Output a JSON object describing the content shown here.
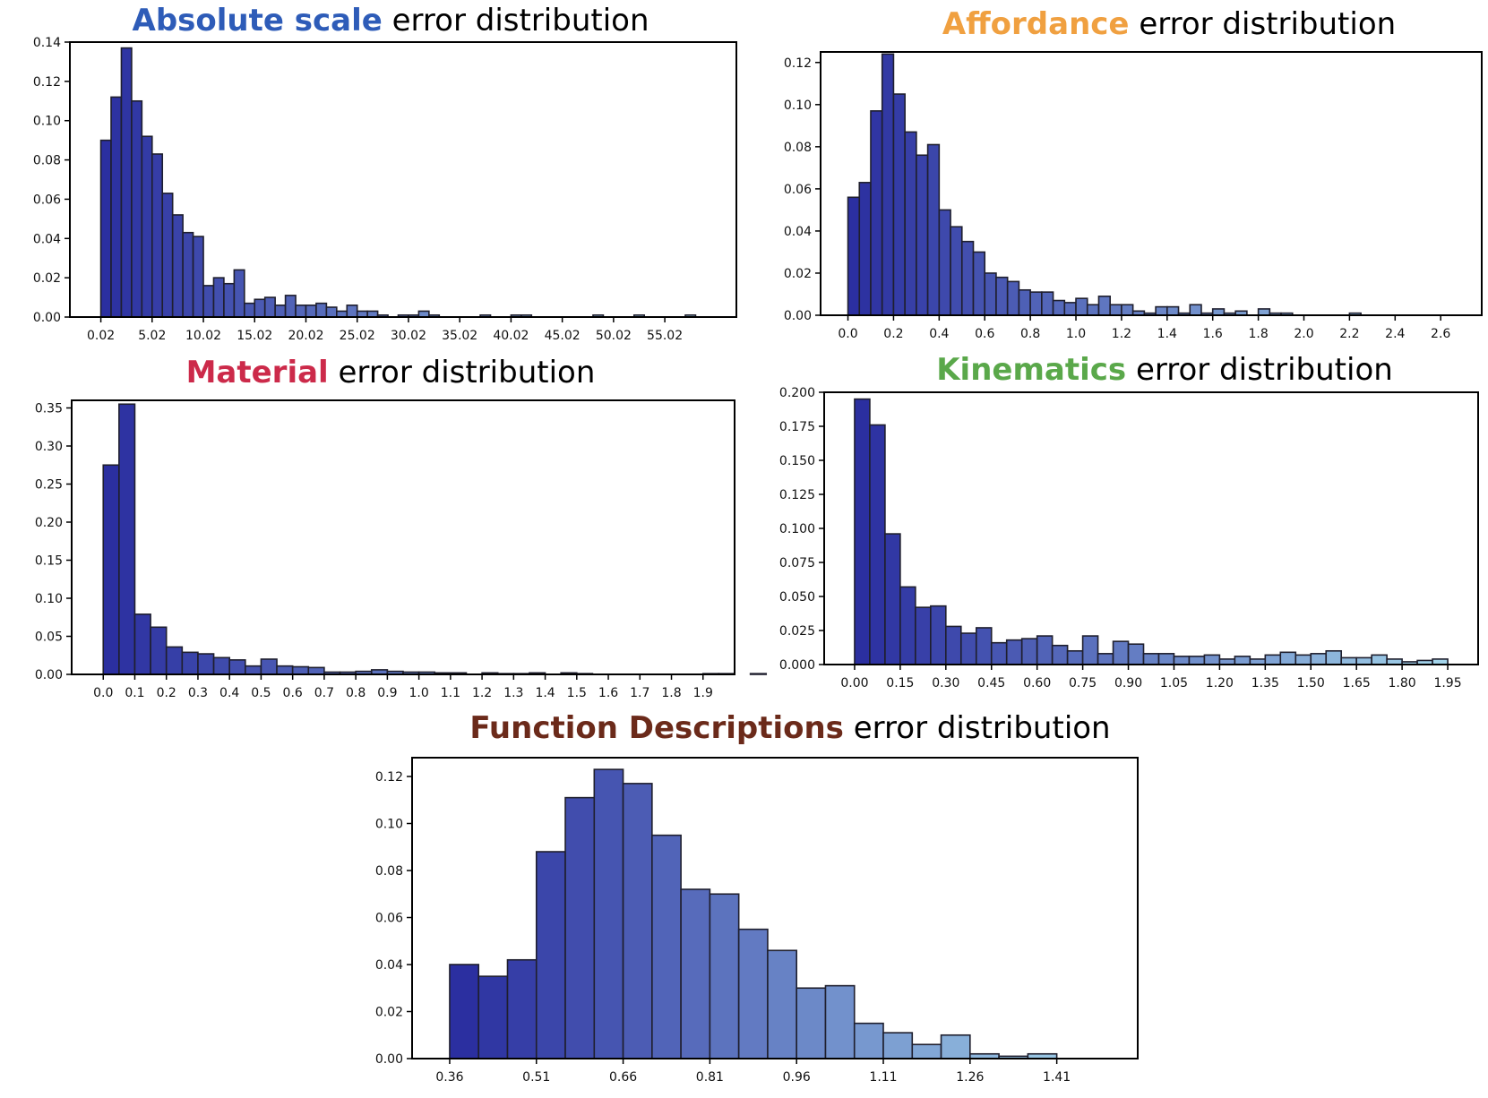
{
  "figure": {
    "colors": {
      "bar_dark": "#2b2fa0",
      "bar_light": "#a3d4ea",
      "edge": "#1f1f2e"
    }
  },
  "chart_data": [
    {
      "id": "absolute-scale",
      "type": "bar",
      "title": {
        "highlight": "Absolute scale",
        "rest": "error distribution",
        "color": "#2e5cb8"
      },
      "xlabel": "",
      "ylabel": "",
      "xlim": [
        -3.0,
        62.0
      ],
      "ylim": [
        0,
        0.14
      ],
      "bin_start": 0.02,
      "bin_width": 1.0,
      "xticks": [
        0.02,
        5.02,
        10.02,
        15.02,
        20.02,
        25.02,
        30.02,
        35.02,
        40.02,
        45.02,
        50.02,
        55.02
      ],
      "xtick_labels": [
        "0.02",
        "5.02",
        "10.02",
        "15.02",
        "20.02",
        "25.02",
        "30.02",
        "35.02",
        "40.02",
        "45.02",
        "50.02",
        "55.02"
      ],
      "yticks": [
        0.0,
        0.02,
        0.04,
        0.06,
        0.08,
        0.1,
        0.12,
        0.14
      ],
      "ytick_labels": [
        "0.00",
        "0.02",
        "0.04",
        "0.06",
        "0.08",
        "0.10",
        "0.12",
        "0.14"
      ],
      "values": [
        0.09,
        0.112,
        0.137,
        0.11,
        0.092,
        0.083,
        0.063,
        0.052,
        0.043,
        0.041,
        0.016,
        0.02,
        0.017,
        0.024,
        0.007,
        0.009,
        0.01,
        0.006,
        0.011,
        0.006,
        0.006,
        0.007,
        0.005,
        0.003,
        0.006,
        0.003,
        0.003,
        0.001,
        0.0,
        0.001,
        0.001,
        0.003,
        0.001,
        0.0,
        0.0,
        0.0,
        0.0,
        0.001,
        0.0,
        0.0,
        0.001,
        0.001,
        0.0,
        0.0,
        0.0,
        0.0,
        0.0,
        0.0,
        0.001,
        0.0,
        0.0,
        0.0,
        0.001,
        0.0,
        0.0,
        0.0,
        0.0,
        0.001
      ]
    },
    {
      "id": "affordance",
      "type": "bar",
      "title": {
        "highlight": "Affordance",
        "rest": "error distribution",
        "color": "#f0a040"
      },
      "xlabel": "",
      "ylabel": "",
      "xlim": [
        -0.12,
        2.78
      ],
      "ylim": [
        0,
        0.125
      ],
      "bin_start": 0.0,
      "bin_width": 0.05,
      "xticks": [
        0.0,
        0.2,
        0.4,
        0.6,
        0.8,
        1.0,
        1.2,
        1.4,
        1.6,
        1.8,
        2.0,
        2.2,
        2.4,
        2.6
      ],
      "xtick_labels": [
        "0.0",
        "0.2",
        "0.4",
        "0.6",
        "0.8",
        "1.0",
        "1.2",
        "1.4",
        "1.6",
        "1.8",
        "2.0",
        "2.2",
        "2.4",
        "2.6"
      ],
      "yticks": [
        0.0,
        0.02,
        0.04,
        0.06,
        0.08,
        0.1,
        0.12
      ],
      "ytick_labels": [
        "0.00",
        "0.02",
        "0.04",
        "0.06",
        "0.08",
        "0.10",
        "0.12"
      ],
      "values": [
        0.056,
        0.063,
        0.097,
        0.124,
        0.105,
        0.087,
        0.076,
        0.081,
        0.05,
        0.042,
        0.035,
        0.03,
        0.02,
        0.018,
        0.016,
        0.012,
        0.011,
        0.011,
        0.007,
        0.006,
        0.008,
        0.005,
        0.009,
        0.005,
        0.005,
        0.002,
        0.001,
        0.004,
        0.004,
        0.001,
        0.005,
        0.001,
        0.003,
        0.001,
        0.002,
        0.0,
        0.003,
        0.001,
        0.001,
        0.0,
        0.0,
        0.0,
        0.0,
        0.0,
        0.001,
        0.0,
        0.0,
        0.0,
        0.0,
        0.0,
        0.0,
        0.0
      ]
    },
    {
      "id": "material",
      "type": "bar",
      "title": {
        "highlight": "Material",
        "rest": "error distribution",
        "color": "#cc2a4a"
      },
      "xlabel": "",
      "ylabel": "",
      "xlim": [
        -0.1,
        2.0
      ],
      "ylim": [
        0,
        0.36
      ],
      "bin_start": 0.0,
      "bin_width": 0.05,
      "xticks": [
        0.0,
        0.1,
        0.2,
        0.3,
        0.4,
        0.5,
        0.6,
        0.7,
        0.8,
        0.9,
        1.0,
        1.1,
        1.2,
        1.3,
        1.4,
        1.5,
        1.6,
        1.7,
        1.8,
        1.9
      ],
      "xtick_labels": [
        "0.0",
        "0.1",
        "0.2",
        "0.3",
        "0.4",
        "0.5",
        "0.6",
        "0.7",
        "0.8",
        "0.9",
        "1.0",
        "1.1",
        "1.2",
        "1.3",
        "1.4",
        "1.5",
        "1.6",
        "1.7",
        "1.8",
        "1.9"
      ],
      "yticks": [
        0.0,
        0.05,
        0.1,
        0.15,
        0.2,
        0.25,
        0.3,
        0.35
      ],
      "ytick_labels": [
        "0.00",
        "0.05",
        "0.10",
        "0.15",
        "0.20",
        "0.25",
        "0.30",
        "0.35"
      ],
      "values": [
        0.275,
        0.355,
        0.079,
        0.062,
        0.036,
        0.029,
        0.027,
        0.022,
        0.019,
        0.011,
        0.02,
        0.011,
        0.01,
        0.009,
        0.003,
        0.003,
        0.004,
        0.006,
        0.004,
        0.003,
        0.003,
        0.002,
        0.002,
        0.0,
        0.002,
        0.001,
        0.001,
        0.002,
        0.0,
        0.002,
        0.001,
        0.0,
        0.0,
        0.0,
        0.0,
        0.0,
        0.0,
        0.0,
        0.001,
        0.001,
        0.0,
        0.001,
        0.0
      ]
    },
    {
      "id": "kinematics",
      "type": "bar",
      "title": {
        "highlight": "Kinematics",
        "rest": "error distribution",
        "color": "#5aa84a"
      },
      "xlabel": "",
      "ylabel": "",
      "xlim": [
        -0.1,
        2.05
      ],
      "ylim": [
        0,
        0.2
      ],
      "bin_start": 0.0,
      "bin_width": 0.05,
      "xticks": [
        0.0,
        0.15,
        0.3,
        0.45,
        0.6,
        0.75,
        0.9,
        1.05,
        1.2,
        1.35,
        1.5,
        1.65,
        1.8,
        1.95
      ],
      "xtick_labels": [
        "0.00",
        "0.15",
        "0.30",
        "0.45",
        "0.60",
        "0.75",
        "0.90",
        "1.05",
        "1.20",
        "1.35",
        "1.50",
        "1.65",
        "1.80",
        "1.95"
      ],
      "yticks": [
        0.0,
        0.025,
        0.05,
        0.075,
        0.1,
        0.125,
        0.15,
        0.175,
        0.2
      ],
      "ytick_labels": [
        "0.000",
        "0.025",
        "0.050",
        "0.075",
        "0.100",
        "0.125",
        "0.150",
        "0.175",
        "0.200"
      ],
      "values": [
        0.195,
        0.176,
        0.096,
        0.057,
        0.042,
        0.043,
        0.028,
        0.023,
        0.027,
        0.016,
        0.018,
        0.019,
        0.021,
        0.014,
        0.01,
        0.021,
        0.008,
        0.017,
        0.015,
        0.008,
        0.008,
        0.006,
        0.006,
        0.007,
        0.004,
        0.006,
        0.004,
        0.007,
        0.009,
        0.007,
        0.008,
        0.01,
        0.005,
        0.005,
        0.007,
        0.004,
        0.002,
        0.003,
        0.004
      ]
    },
    {
      "id": "function-descriptions",
      "type": "bar",
      "title": {
        "highlight": "Function Descriptions",
        "rest": "error distribution",
        "color": "#6b2a1a"
      },
      "xlabel": "",
      "ylabel": "",
      "xlim": [
        0.295,
        1.55
      ],
      "ylim": [
        0,
        0.128
      ],
      "bin_start": 0.36,
      "bin_width": 0.05,
      "xticks": [
        0.36,
        0.51,
        0.66,
        0.81,
        0.96,
        1.11,
        1.26,
        1.41
      ],
      "xtick_labels": [
        "0.36",
        "0.51",
        "0.66",
        "0.81",
        "0.96",
        "1.11",
        "1.26",
        "1.41"
      ],
      "yticks": [
        0.0,
        0.02,
        0.04,
        0.06,
        0.08,
        0.1,
        0.12
      ],
      "ytick_labels": [
        "0.00",
        "0.02",
        "0.04",
        "0.06",
        "0.08",
        "0.10",
        "0.12"
      ],
      "values": [
        0.04,
        0.035,
        0.042,
        0.088,
        0.111,
        0.123,
        0.117,
        0.095,
        0.072,
        0.07,
        0.055,
        0.046,
        0.03,
        0.031,
        0.015,
        0.011,
        0.006,
        0.01,
        0.002,
        0.001,
        0.002,
        0.0,
        0.0
      ]
    }
  ]
}
